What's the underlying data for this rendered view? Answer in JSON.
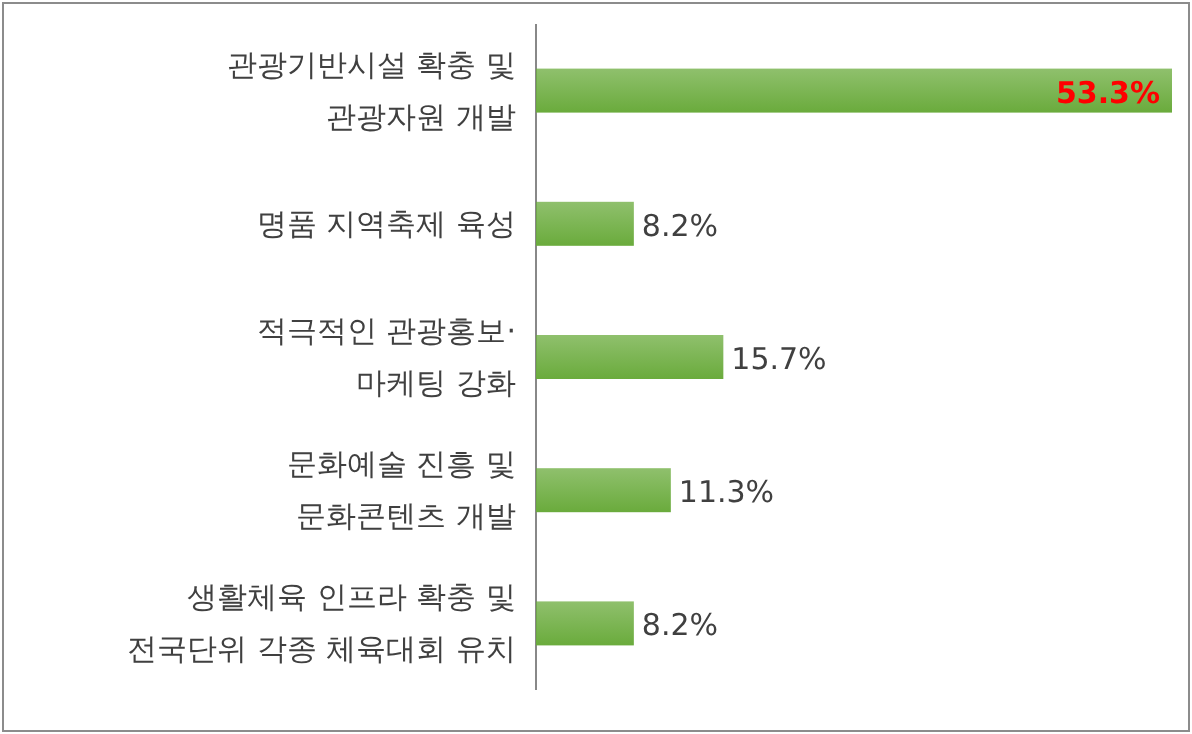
{
  "chart_data": {
    "type": "bar",
    "orientation": "horizontal",
    "categories": [
      "관광기반시설 확충 및\n관광자원 개발",
      "명품 지역축제 육성",
      "적극적인 관광홍보·\n마케팅 강화",
      "문화예술 진흥 및\n문화콘텐츠 개발",
      "생활체육 인프라 확충 및\n전국단위 각종 체육대회 유치"
    ],
    "values": [
      53.3,
      8.2,
      15.7,
      11.3,
      8.2
    ],
    "value_labels": [
      "53.3%",
      "8.2%",
      "15.7%",
      "11.3%",
      "8.2%"
    ],
    "color": "#6aab3c"
  }
}
